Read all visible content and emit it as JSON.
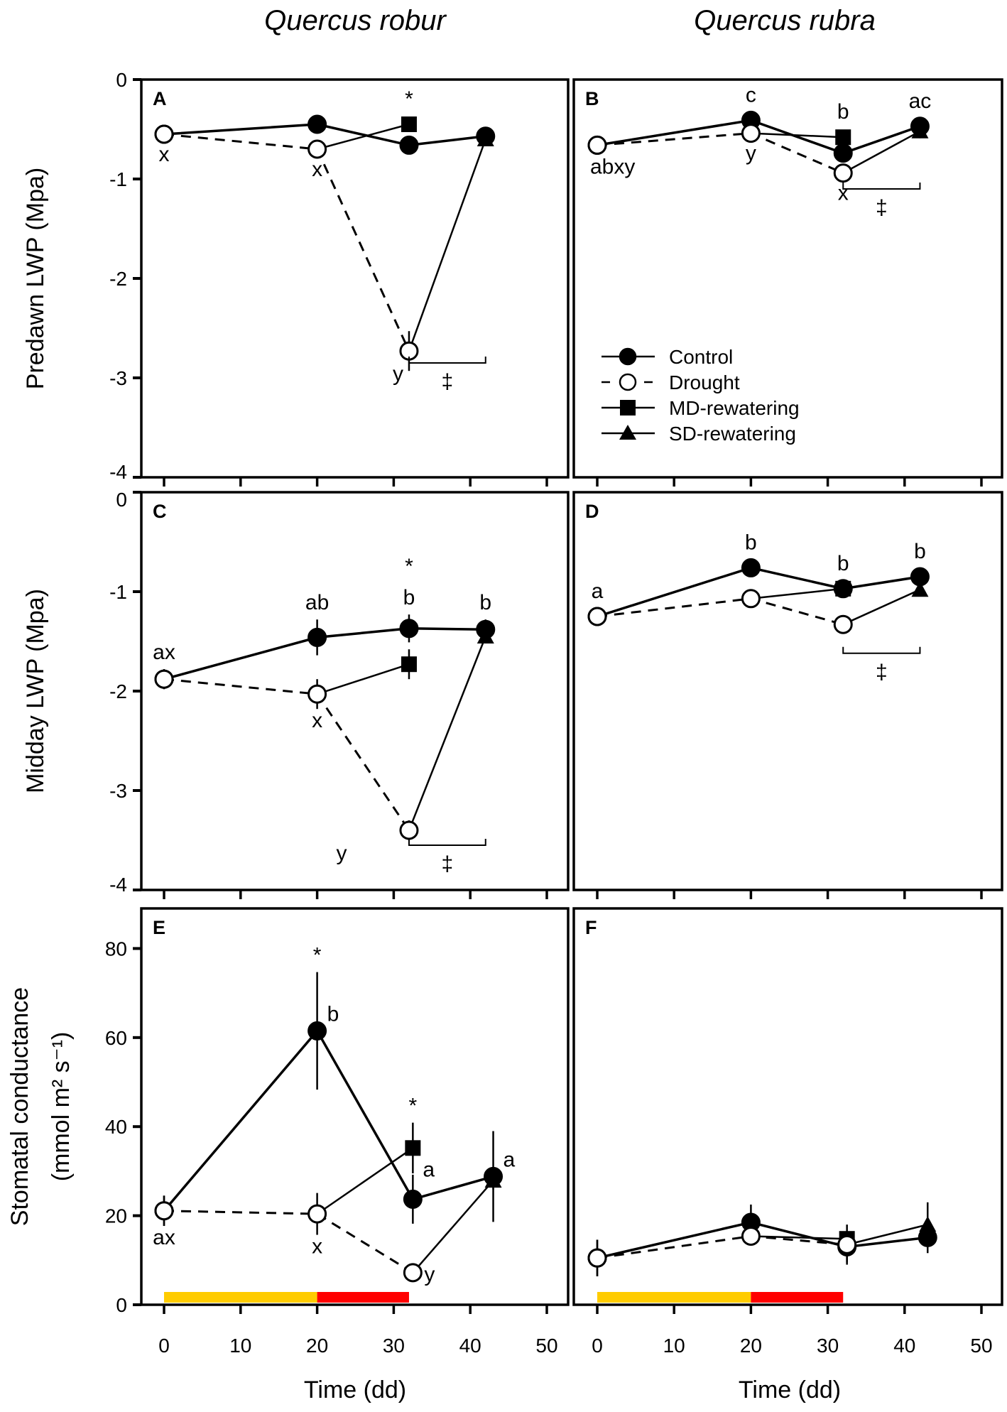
{
  "titles": [
    "Quercus robur",
    "Quercus rubra"
  ],
  "xlabel": "Time (dd)",
  "legend": [
    {
      "label": "Control",
      "marker": "filled-circle",
      "line": "solid"
    },
    {
      "label": "Drought",
      "marker": "open-circle",
      "line": "dashed"
    },
    {
      "label": "MD-rewatering",
      "marker": "filled-square",
      "line": "solid"
    },
    {
      "label": "SD-rewatering",
      "marker": "filled-triangle",
      "line": "solid"
    }
  ],
  "colors": {
    "ink": "#000000",
    "drought_period": "#FFCC00",
    "severe_drought_period": "#FF0000"
  },
  "chart_data": [
    {
      "panel": "A",
      "type": "line",
      "species": "Quercus robur",
      "ylabel": [
        "Predawn LWP (Mpa)"
      ],
      "ylim": [
        -4,
        0
      ],
      "yticks": [
        0,
        -1,
        -2,
        -3,
        -4
      ],
      "xlim": [
        0,
        50
      ],
      "xticks": [
        0,
        10,
        20,
        30,
        40,
        50
      ],
      "show_xticklabels": false,
      "series": [
        {
          "name": "Control",
          "x": [
            0,
            20,
            32,
            42
          ],
          "y": [
            -0.55,
            -0.45,
            -0.66,
            -0.57
          ],
          "err": [
            0.05,
            0.04,
            0.06,
            0.04
          ]
        },
        {
          "name": "Drought",
          "x": [
            0,
            20,
            32
          ],
          "y": [
            -0.55,
            -0.7,
            -2.73
          ],
          "err": [
            0.04,
            0.07,
            0.2
          ]
        },
        {
          "name": "MD-rewatering",
          "x": [
            20,
            32
          ],
          "y": [
            -0.7,
            -0.45
          ],
          "err": [
            0,
            0.04
          ]
        },
        {
          "name": "SD-rewatering",
          "x": [
            32,
            42
          ],
          "y": [
            -2.73,
            -0.6
          ],
          "err": [
            0,
            0.05
          ]
        }
      ],
      "annotations": [
        {
          "text": "x",
          "series": 1,
          "point": 0,
          "pos": "below"
        },
        {
          "text": "x",
          "series": 1,
          "point": 1,
          "pos": "below"
        },
        {
          "text": "*",
          "series": 2,
          "point": 1,
          "pos": "above"
        },
        {
          "text": "y",
          "series": 1,
          "point": 2,
          "pos": "left-below"
        }
      ],
      "brackets": [
        {
          "from": 32,
          "to": 42,
          "level": -2.85,
          "text": "‡"
        }
      ]
    },
    {
      "panel": "B",
      "type": "line",
      "species": "Quercus rubra",
      "ylabel": [],
      "ylim": [
        -4,
        0
      ],
      "yticks": [],
      "xlim": [
        0,
        50
      ],
      "xticks": [
        0,
        10,
        20,
        30,
        40,
        50
      ],
      "show_xticklabels": false,
      "series": [
        {
          "name": "Control",
          "x": [
            0,
            20,
            32,
            42
          ],
          "y": [
            -0.66,
            -0.41,
            -0.74,
            -0.47
          ],
          "err": [
            0.06,
            0.04,
            0.05,
            0.04
          ]
        },
        {
          "name": "Drought",
          "x": [
            0,
            20,
            32
          ],
          "y": [
            -0.66,
            -0.54,
            -0.94
          ],
          "err": [
            0.05,
            0.04,
            0.05
          ]
        },
        {
          "name": "MD-rewatering",
          "x": [
            20,
            32
          ],
          "y": [
            -0.54,
            -0.58
          ],
          "err": [
            0,
            0.04
          ]
        },
        {
          "name": "SD-rewatering",
          "x": [
            32,
            42
          ],
          "y": [
            -0.94,
            -0.52
          ],
          "err": [
            0,
            0.07
          ]
        }
      ],
      "annotations": [
        {
          "text": "abxy",
          "series": 0,
          "point": 0,
          "pos": "below-right"
        },
        {
          "text": "c",
          "series": 0,
          "point": 1,
          "pos": "above"
        },
        {
          "text": "y",
          "series": 1,
          "point": 1,
          "pos": "below"
        },
        {
          "text": "b",
          "series": 2,
          "point": 1,
          "pos": "above"
        },
        {
          "text": "x",
          "series": 1,
          "point": 2,
          "pos": "below"
        },
        {
          "text": "ac",
          "series": 0,
          "point": 3,
          "pos": "above"
        }
      ],
      "brackets": [
        {
          "from": 32,
          "to": 42,
          "level": -1.1,
          "text": "‡"
        }
      ]
    },
    {
      "panel": "C",
      "type": "line",
      "species": "Quercus robur",
      "ylabel": [
        "Midday LWP (Mpa)"
      ],
      "ylim": [
        -4,
        0
      ],
      "yticks": [
        0,
        -1,
        -2,
        -3,
        -4
      ],
      "xlim": [
        0,
        50
      ],
      "xticks": [
        0,
        10,
        20,
        30,
        40,
        50
      ],
      "show_xticklabels": false,
      "series": [
        {
          "name": "Control",
          "x": [
            0,
            20,
            32,
            42
          ],
          "y": [
            -1.88,
            -1.46,
            -1.37,
            -1.38
          ],
          "err": [
            0.1,
            0.18,
            0.14,
            0.1
          ]
        },
        {
          "name": "Drought",
          "x": [
            0,
            20,
            32
          ],
          "y": [
            -1.88,
            -2.03,
            -3.4
          ],
          "err": [
            0.1,
            0.15,
            0.1
          ]
        },
        {
          "name": "MD-rewatering",
          "x": [
            20,
            32
          ],
          "y": [
            -2.03,
            -1.73
          ],
          "err": [
            0,
            0.15
          ]
        },
        {
          "name": "SD-rewatering",
          "x": [
            32,
            42
          ],
          "y": [
            -3.4,
            -1.45
          ],
          "err": [
            0,
            0.05
          ]
        }
      ],
      "annotations": [
        {
          "text": "ax",
          "series": 0,
          "point": 0,
          "pos": "above"
        },
        {
          "text": "ab",
          "series": 0,
          "point": 1,
          "pos": "above"
        },
        {
          "text": "b",
          "series": 0,
          "point": 2,
          "pos": "above"
        },
        {
          "text": "*",
          "series": 0,
          "point": 2,
          "pos": "above2"
        },
        {
          "text": "b",
          "series": 0,
          "point": 3,
          "pos": "above"
        },
        {
          "text": "x",
          "series": 1,
          "point": 1,
          "pos": "below"
        },
        {
          "text": "y",
          "series": 1,
          "point": 2,
          "pos": "far-left-below"
        }
      ],
      "brackets": [
        {
          "from": 32,
          "to": 42,
          "level": -3.55,
          "text": "‡"
        }
      ]
    },
    {
      "panel": "D",
      "type": "line",
      "species": "Quercus rubra",
      "ylabel": [],
      "ylim": [
        -4,
        0
      ],
      "yticks": [],
      "xlim": [
        0,
        50
      ],
      "xticks": [
        0,
        10,
        20,
        30,
        40,
        50
      ],
      "show_xticklabels": false,
      "series": [
        {
          "name": "Control",
          "x": [
            0,
            20,
            32,
            42
          ],
          "y": [
            -1.25,
            -0.76,
            -0.97,
            -0.85
          ],
          "err": [
            0.05,
            0.05,
            0.05,
            0.05
          ]
        },
        {
          "name": "Drought",
          "x": [
            0,
            20,
            32
          ],
          "y": [
            -1.25,
            -1.07,
            -1.33
          ],
          "err": [
            0.05,
            0.06,
            0.06
          ]
        },
        {
          "name": "MD-rewatering",
          "x": [
            20,
            32
          ],
          "y": [
            -1.07,
            -0.97
          ],
          "err": [
            0,
            0.04
          ]
        },
        {
          "name": "SD-rewatering",
          "x": [
            32,
            42
          ],
          "y": [
            -1.33,
            -0.98
          ],
          "err": [
            0,
            0.05
          ]
        }
      ],
      "annotations": [
        {
          "text": "a",
          "series": 0,
          "point": 0,
          "pos": "above"
        },
        {
          "text": "b",
          "series": 0,
          "point": 1,
          "pos": "above"
        },
        {
          "text": "b",
          "series": 2,
          "point": 1,
          "pos": "above"
        },
        {
          "text": "b",
          "series": 0,
          "point": 3,
          "pos": "above"
        }
      ],
      "brackets": [
        {
          "from": 32,
          "to": 42,
          "level": -1.62,
          "text": "‡"
        }
      ]
    },
    {
      "panel": "E",
      "type": "line",
      "species": "Quercus robur",
      "ylabel": [
        "Stomatal conductance",
        "(mmol m² s⁻¹)"
      ],
      "ylim": [
        0,
        89
      ],
      "yticks": [
        0,
        20,
        40,
        60,
        80
      ],
      "xlim": [
        0,
        50
      ],
      "xticks": [
        0,
        10,
        20,
        30,
        40,
        50
      ],
      "show_xticklabels": true,
      "series": [
        {
          "name": "Control",
          "x": [
            0,
            20,
            32.5,
            43
          ],
          "y": [
            21.1,
            61.5,
            23.7,
            28.8
          ],
          "err": [
            3.4,
            13.2,
            5.5,
            10.2
          ]
        },
        {
          "name": "Drought",
          "x": [
            0,
            20,
            32.5
          ],
          "y": [
            21.1,
            20.4,
            7.2
          ],
          "err": [
            3.4,
            4.7,
            1
          ]
        },
        {
          "name": "MD-rewatering",
          "x": [
            20,
            32.5
          ],
          "y": [
            20.4,
            35.2
          ],
          "err": [
            0,
            5.7
          ]
        },
        {
          "name": "SD-rewatering",
          "x": [
            32.5,
            43
          ],
          "y": [
            7.2,
            27.9
          ],
          "err": [
            0,
            2
          ]
        }
      ],
      "annotations": [
        {
          "text": "ax",
          "series": 0,
          "point": 0,
          "pos": "below"
        },
        {
          "text": "*",
          "series": 0,
          "point": 1,
          "pos": "above"
        },
        {
          "text": "b",
          "series": 0,
          "point": 1,
          "pos": "right-up"
        },
        {
          "text": "*",
          "series": 2,
          "point": 1,
          "pos": "above"
        },
        {
          "text": "a",
          "series": 2,
          "point": 1,
          "pos": "right-below"
        },
        {
          "text": "a",
          "series": 0,
          "point": 3,
          "pos": "right-up"
        },
        {
          "text": "x",
          "series": 1,
          "point": 1,
          "pos": "below"
        },
        {
          "text": "y",
          "series": 1,
          "point": 2,
          "pos": "right"
        }
      ],
      "brackets": [],
      "treatment_bars": [
        {
          "from": 0,
          "to": 20,
          "color": "#FFCC00"
        },
        {
          "from": 20,
          "to": 32,
          "color": "#FF0000"
        }
      ]
    },
    {
      "panel": "F",
      "type": "line",
      "species": "Quercus rubra",
      "ylabel": [],
      "ylim": [
        0,
        89
      ],
      "yticks": [],
      "xlim": [
        0,
        50
      ],
      "xticks": [
        0,
        10,
        20,
        30,
        40,
        50
      ],
      "show_xticklabels": true,
      "series": [
        {
          "name": "Control",
          "x": [
            0,
            20,
            32.5,
            43
          ],
          "y": [
            10.5,
            18.5,
            13.0,
            15.1
          ],
          "err": [
            4.1,
            4.0,
            3.5,
            3.5
          ]
        },
        {
          "name": "Drought",
          "x": [
            0,
            20,
            32.5
          ],
          "y": [
            10.5,
            15.4,
            13.5
          ],
          "err": [
            4.1,
            1,
            4.5
          ]
        },
        {
          "name": "MD-rewatering",
          "x": [
            20,
            32.5
          ],
          "y": [
            15.4,
            14.8
          ],
          "err": [
            0,
            1.5
          ]
        },
        {
          "name": "SD-rewatering",
          "x": [
            32.5,
            43
          ],
          "y": [
            13.5,
            18.0
          ],
          "err": [
            0,
            5
          ]
        }
      ],
      "annotations": [],
      "brackets": [],
      "treatment_bars": [
        {
          "from": 0,
          "to": 20,
          "color": "#FFCC00"
        },
        {
          "from": 20,
          "to": 32,
          "color": "#FF0000"
        }
      ]
    }
  ]
}
